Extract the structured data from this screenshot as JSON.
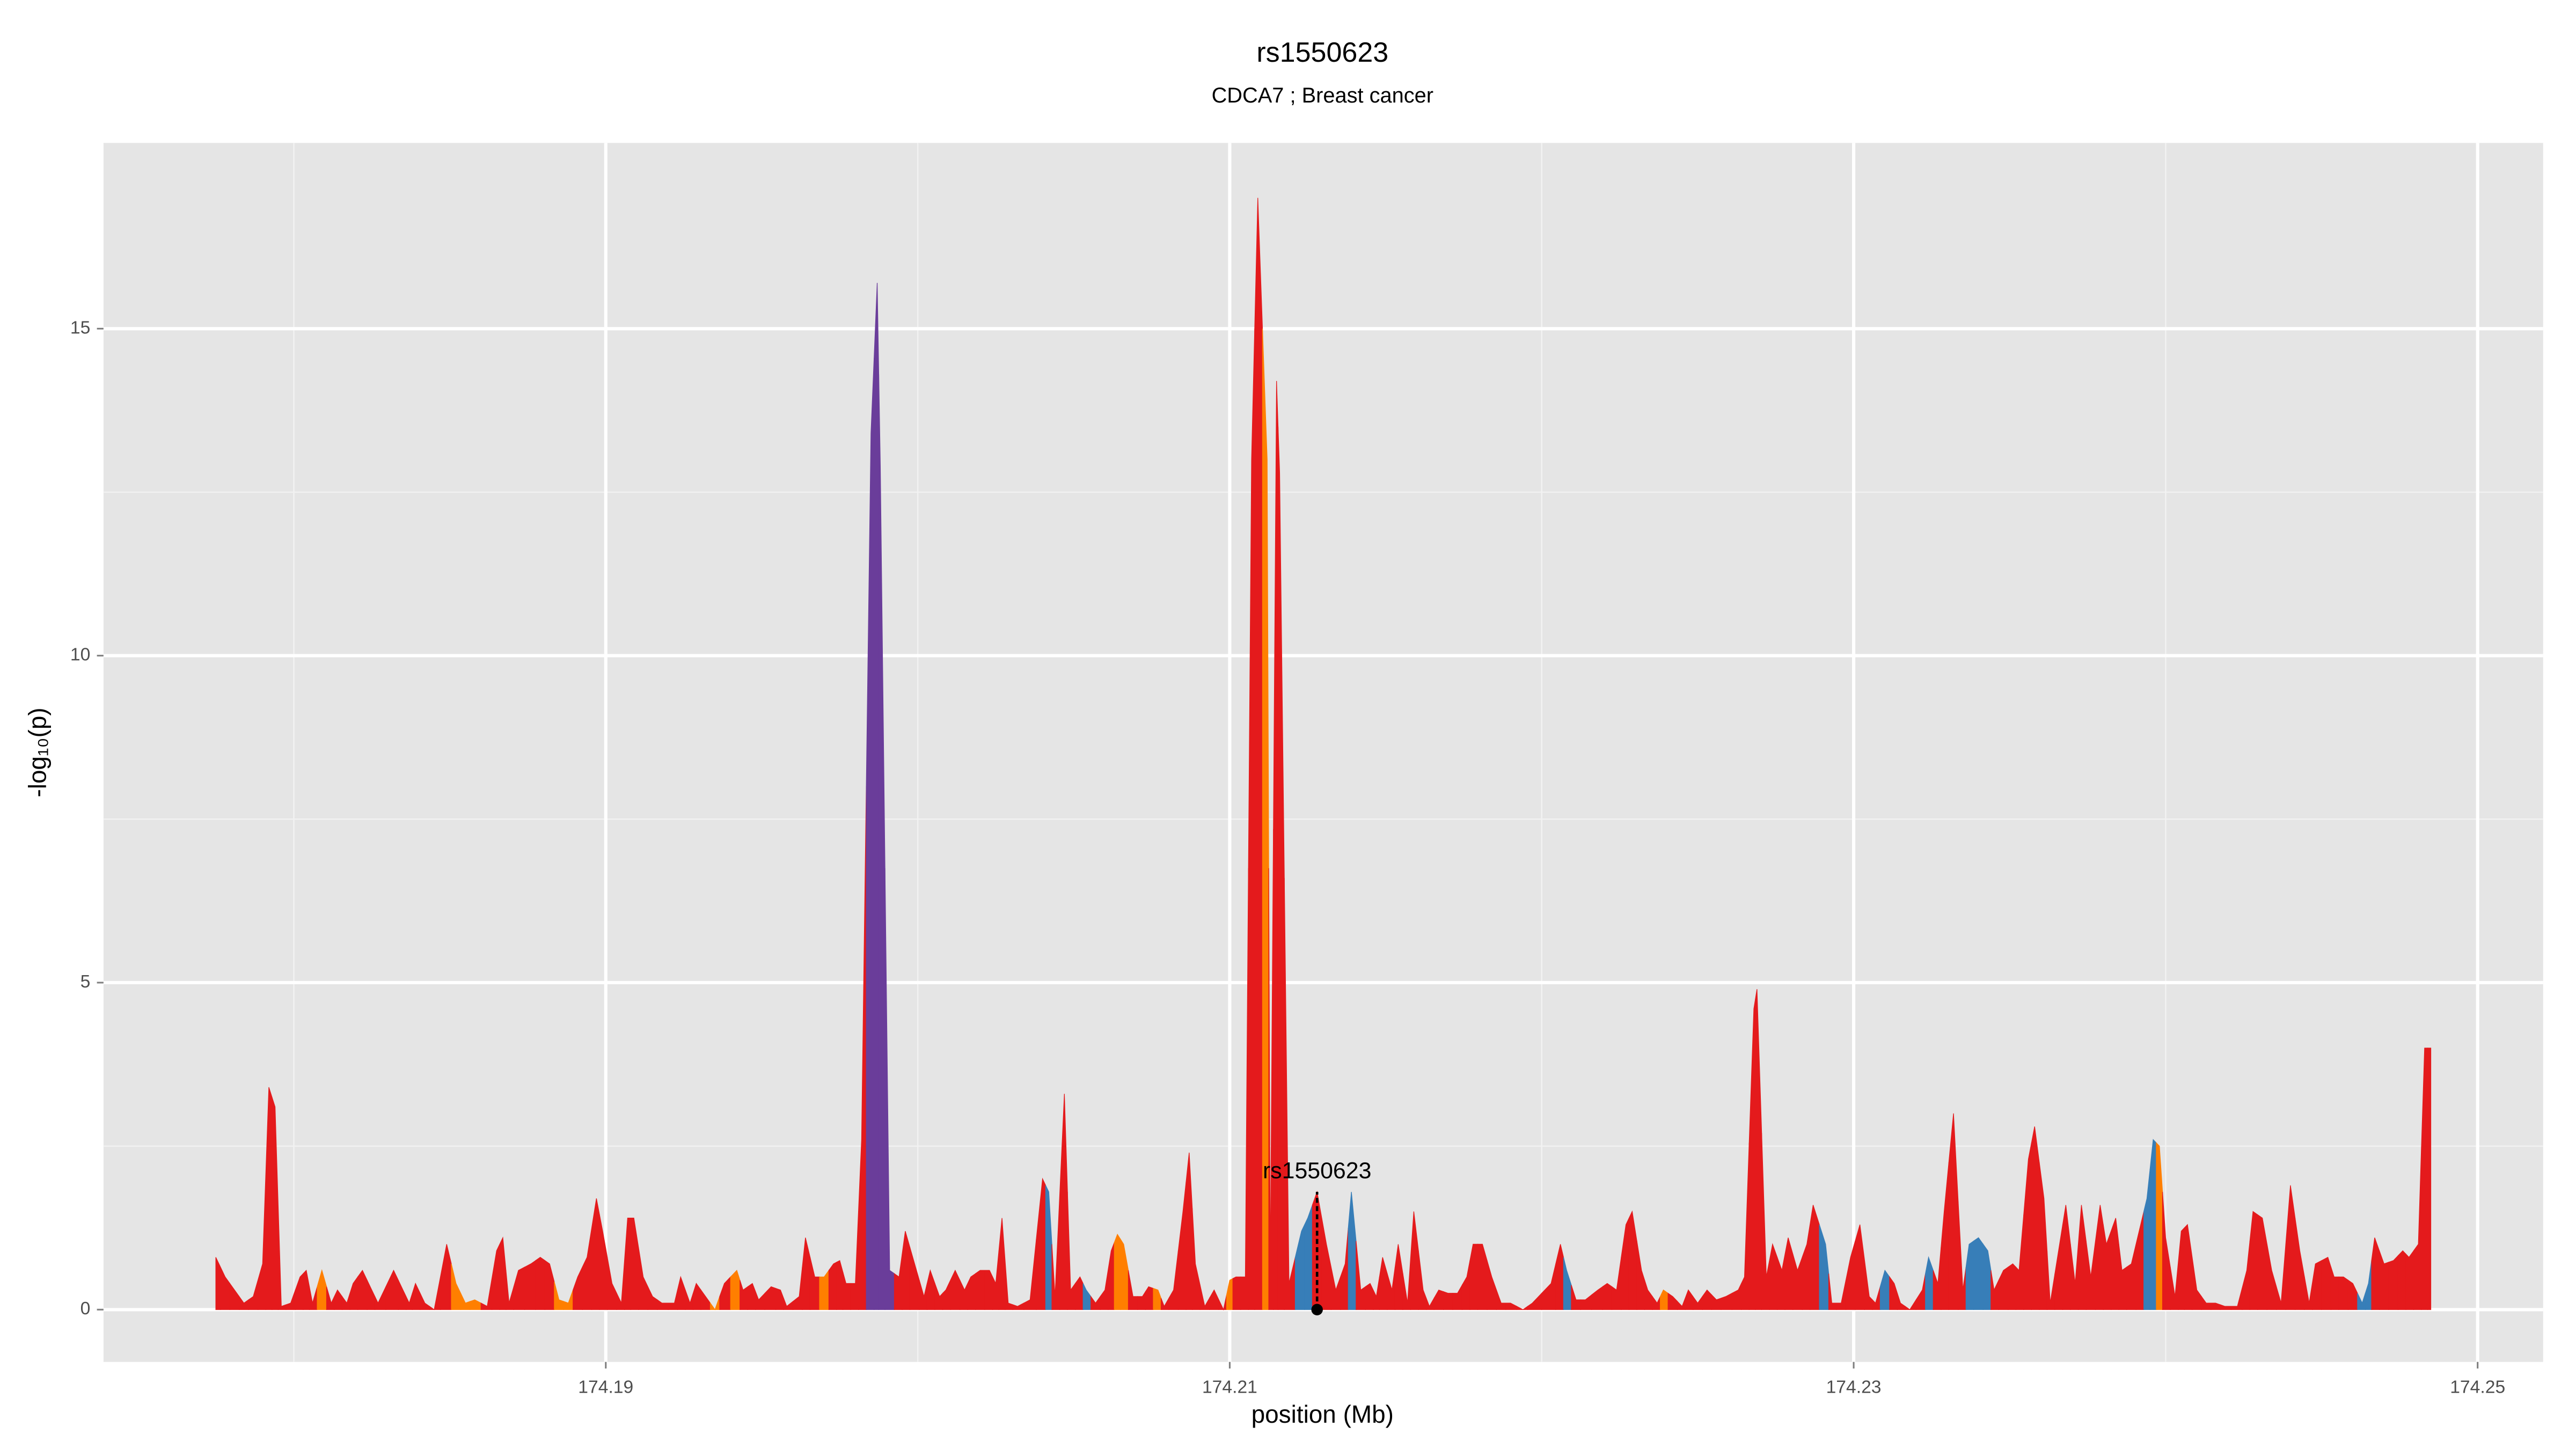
{
  "chart_data": {
    "type": "area",
    "title": "rs1550623",
    "subtitle": "CDCA7 ; Breast cancer",
    "x_label": "position (Mb)",
    "y_label": "-log₁₀(p)",
    "xlim": [
      174.1739,
      174.2521
    ],
    "ylim": [
      -0.8,
      17.84
    ],
    "xticks": [
      174.19,
      174.21,
      174.23,
      174.25
    ],
    "yticks": [
      0,
      5,
      10,
      15
    ],
    "minor_xticks": [
      174.18,
      174.2,
      174.22,
      174.24
    ],
    "minor_yticks": [
      2.5,
      7.5,
      12.5
    ],
    "grid": true,
    "annotation": {
      "label": "rs1550623",
      "x": 174.2128,
      "y": 1.8
    },
    "x": [
      174.1775,
      174.1778,
      174.1781,
      174.1784,
      174.1787,
      174.179,
      174.1792,
      174.1794,
      174.1796,
      174.1799,
      174.1802,
      174.1804,
      174.1806,
      174.1809,
      174.1812,
      174.1814,
      174.1817,
      174.1819,
      174.1822,
      174.1825,
      174.1827,
      174.1832,
      174.1835,
      174.1837,
      174.1839,
      174.1842,
      174.1845,
      174.1849,
      174.1852,
      174.1855,
      174.1858,
      174.1862,
      174.1865,
      174.1867,
      174.1869,
      174.1872,
      174.1876,
      174.1879,
      174.1882,
      174.1885,
      174.1888,
      174.1891,
      174.1894,
      174.1897,
      174.1899,
      174.1902,
      174.1905,
      174.1907,
      174.1909,
      174.1912,
      174.1915,
      174.1918,
      174.1922,
      174.1924,
      174.1927,
      174.1929,
      174.1932,
      174.1935,
      174.1938,
      174.1942,
      174.1944,
      174.1947,
      174.1949,
      174.1953,
      174.1956,
      174.1958,
      174.1962,
      174.1964,
      174.1967,
      174.197,
      174.1973,
      174.1975,
      174.1977,
      174.198,
      174.1982,
      174.1985,
      174.1987,
      174.1988,
      174.1991,
      174.1994,
      174.1996,
      174.1999,
      174.2002,
      174.2004,
      174.2007,
      174.2009,
      174.2012,
      174.2015,
      174.2017,
      174.202,
      174.2023,
      174.2025,
      174.2027,
      174.2029,
      174.2032,
      174.2036,
      174.204,
      174.2042,
      174.2044,
      174.2047,
      174.2049,
      174.2052,
      174.2054,
      174.2057,
      174.206,
      174.2062,
      174.2064,
      174.2066,
      174.2069,
      174.2072,
      174.2074,
      174.2077,
      174.2079,
      174.2082,
      174.2085,
      174.2087,
      174.2089,
      174.2092,
      174.2095,
      174.2098,
      174.21,
      174.2102,
      174.2105,
      174.2107,
      174.2109,
      174.2112,
      174.2113,
      174.2115,
      174.2116,
      174.2119,
      174.2123,
      174.2125,
      174.2128,
      174.2131,
      174.2134,
      174.2137,
      174.2139,
      174.2142,
      174.2145,
      174.2147,
      174.2149,
      174.2152,
      174.2154,
      174.2157,
      174.2159,
      174.2162,
      174.2164,
      174.2167,
      174.217,
      174.2173,
      174.2176,
      174.2178,
      174.2181,
      174.2184,
      174.2187,
      174.219,
      174.2194,
      174.2197,
      174.2203,
      174.2206,
      174.2208,
      174.2211,
      174.2214,
      174.2218,
      174.2221,
      174.2224,
      174.2227,
      174.2229,
      174.2232,
      174.2234,
      174.2237,
      174.2239,
      174.2242,
      174.2245,
      174.2247,
      174.225,
      174.2253,
      174.2256,
      174.2259,
      174.2263,
      174.2265,
      174.2268,
      174.2269,
      174.2272,
      174.2274,
      174.2277,
      174.2279,
      174.2282,
      174.2285,
      174.2287,
      174.2291,
      174.2293,
      174.2296,
      174.2299,
      174.2302,
      174.2305,
      174.2307,
      174.231,
      174.2313,
      174.2315,
      174.2318,
      174.2322,
      174.2324,
      174.2327,
      174.2329,
      174.2332,
      174.2335,
      174.2337,
      174.234,
      174.2343,
      174.2345,
      174.2348,
      174.2351,
      174.2353,
      174.2356,
      174.2358,
      174.2361,
      174.2363,
      174.2366,
      174.2368,
      174.2371,
      174.2373,
      174.2376,
      174.2379,
      174.2381,
      174.2384,
      174.2386,
      174.2389,
      174.2392,
      174.2394,
      174.2396,
      174.2398,
      174.24,
      174.2403,
      174.2405,
      174.2407,
      174.241,
      174.2413,
      174.2416,
      174.2419,
      174.2423,
      174.2426,
      174.2428,
      174.2431,
      174.2434,
      174.2437,
      174.244,
      174.2443,
      174.2446,
      174.2448,
      174.2452,
      174.2454,
      174.2457,
      174.246,
      174.2463,
      174.2465,
      174.2467,
      174.247,
      174.2473,
      174.2476,
      174.2478,
      174.2481,
      174.2483,
      174.2485
    ],
    "values": [
      0.8,
      0.5,
      0.3,
      0.1,
      0.2,
      0.7,
      3.4,
      3.1,
      0.05,
      0.1,
      0.5,
      0.6,
      0.1,
      0.6,
      0.1,
      0.3,
      0.1,
      0.4,
      0.6,
      0.3,
      0.1,
      0.6,
      0.3,
      0.1,
      0.4,
      0.1,
      0,
      1.0,
      0.4,
      0.1,
      0.15,
      0.05,
      0.9,
      1.1,
      0.1,
      0.6,
      0.7,
      0.8,
      0.7,
      0.15,
      0.1,
      0.5,
      0.8,
      1.7,
      1.2,
      0.4,
      0.1,
      1.4,
      1.4,
      0.5,
      0.2,
      0.1,
      0.1,
      0.5,
      0.1,
      0.4,
      0.2,
      0,
      0.4,
      0.6,
      0.3,
      0.4,
      0.15,
      0.35,
      0.3,
      0.05,
      0.2,
      1.1,
      0.5,
      0.5,
      0.7,
      0.75,
      0.4,
      0.4,
      2.6,
      13.4,
      15.7,
      12.9,
      0.6,
      0.5,
      1.2,
      0.7,
      0.2,
      0.6,
      0.2,
      0.3,
      0.6,
      0.3,
      0.5,
      0.6,
      0.6,
      0.4,
      1.4,
      0.1,
      0.05,
      0.15,
      2.0,
      1.8,
      0.2,
      3.3,
      0.3,
      0.5,
      0.3,
      0.1,
      0.3,
      0.9,
      1.15,
      1.0,
      0.2,
      0.2,
      0.35,
      0.3,
      0.05,
      0.3,
      1.5,
      2.4,
      0.7,
      0.05,
      0.3,
      0,
      0.45,
      0.5,
      0.5,
      13.0,
      17.0,
      13.0,
      0.5,
      14.2,
      12.8,
      0.4,
      1.2,
      1.4,
      1.8,
      1.0,
      0.3,
      0.7,
      1.8,
      0.3,
      0.4,
      0.2,
      0.8,
      0.3,
      1.0,
      0.1,
      1.5,
      0.3,
      0.05,
      0.3,
      0.25,
      0.25,
      0.5,
      1.0,
      1.0,
      0.5,
      0.1,
      0.1,
      0,
      0.1,
      0.4,
      1.0,
      0.6,
      0.15,
      0.15,
      0.3,
      0.4,
      0.3,
      1.3,
      1.5,
      0.6,
      0.3,
      0.1,
      0.3,
      0.2,
      0.05,
      0.3,
      0.1,
      0.3,
      0.15,
      0.2,
      0.3,
      0.5,
      4.6,
      4.9,
      0.5,
      1.0,
      0.6,
      1.1,
      0.6,
      1.0,
      1.6,
      1.0,
      0.1,
      0.1,
      0.8,
      1.3,
      0.2,
      0.1,
      0.6,
      0.4,
      0.1,
      0,
      0.3,
      0.8,
      0.4,
      1.5,
      3.0,
      0.3,
      1.0,
      1.1,
      0.9,
      0.3,
      0.6,
      0.7,
      0.6,
      2.3,
      2.8,
      1.7,
      0.1,
      1.0,
      1.6,
      0.4,
      1.6,
      0.5,
      1.6,
      1.0,
      1.4,
      0.6,
      0.7,
      1.3,
      1.7,
      2.6,
      2.5,
      1.1,
      0.2,
      1.2,
      1.3,
      0.3,
      0.1,
      0.1,
      0.05,
      0.05,
      0.6,
      1.5,
      1.4,
      0.6,
      0.1,
      1.9,
      0.9,
      0.1,
      0.7,
      0.8,
      0.5,
      0.5,
      0.4,
      0.1,
      0.4,
      1.1,
      0.7,
      0.75,
      0.9,
      0.8,
      1.0,
      4.0,
      4.0
    ],
    "colors": [
      "#e41a1c",
      "#e41a1c",
      "#e41a1c",
      "#e41a1c",
      "#e41a1c",
      "#e41a1c",
      "#e41a1c",
      "#e41a1c",
      "#e41a1c",
      "#e41a1c",
      "#e41a1c",
      "#e41a1c",
      "#e41a1c",
      "#ff7f00",
      "#e41a1c",
      "#e41a1c",
      "#e41a1c",
      "#e41a1c",
      "#e41a1c",
      "#e41a1c",
      "#e41a1c",
      "#e41a1c",
      "#e41a1c",
      "#e41a1c",
      "#e41a1c",
      "#e41a1c",
      "#e41a1c",
      "#e41a1c",
      "#ff7f00",
      "#ff7f00",
      "#ff7f00",
      "#e41a1c",
      "#e41a1c",
      "#e41a1c",
      "#e41a1c",
      "#e41a1c",
      "#e41a1c",
      "#e41a1c",
      "#e41a1c",
      "#ff7f00",
      "#ff7f00",
      "#e41a1c",
      "#e41a1c",
      "#e41a1c",
      "#e41a1c",
      "#e41a1c",
      "#e41a1c",
      "#e41a1c",
      "#e41a1c",
      "#e41a1c",
      "#e41a1c",
      "#e41a1c",
      "#e41a1c",
      "#e41a1c",
      "#e41a1c",
      "#e41a1c",
      "#e41a1c",
      "#ff7f00",
      "#e41a1c",
      "#ff7f00",
      "#e41a1c",
      "#e41a1c",
      "#e41a1c",
      "#e41a1c",
      "#e41a1c",
      "#e41a1c",
      "#e41a1c",
      "#e41a1c",
      "#e41a1c",
      "#ff7f00",
      "#e41a1c",
      "#e41a1c",
      "#e41a1c",
      "#e41a1c",
      "#e41a1c",
      "#6a3d9a",
      "#6a3d9a",
      "#6a3d9a",
      "#6a3d9a",
      "#e41a1c",
      "#e41a1c",
      "#e41a1c",
      "#e41a1c",
      "#e41a1c",
      "#e41a1c",
      "#e41a1c",
      "#e41a1c",
      "#e41a1c",
      "#e41a1c",
      "#e41a1c",
      "#e41a1c",
      "#e41a1c",
      "#e41a1c",
      "#e41a1c",
      "#e41a1c",
      "#e41a1c",
      "#e41a1c",
      "#377eb8",
      "#e41a1c",
      "#e41a1c",
      "#e41a1c",
      "#e41a1c",
      "#377eb8",
      "#e41a1c",
      "#e41a1c",
      "#e41a1c",
      "#ff7f00",
      "#ff7f00",
      "#e41a1c",
      "#e41a1c",
      "#e41a1c",
      "#ff7f00",
      "#e41a1c",
      "#e41a1c",
      "#e41a1c",
      "#e41a1c",
      "#e41a1c",
      "#e41a1c",
      "#e41a1c",
      "#e41a1c",
      "#ff7f00",
      "#e41a1c",
      "#e41a1c",
      "#e41a1c",
      "#e41a1c",
      "#ff7f00",
      "#e41a1c",
      "#e41a1c",
      "#e41a1c",
      "#e41a1c",
      "#377eb8",
      "#377eb8",
      "#e41a1c",
      "#e41a1c",
      "#e41a1c",
      "#e41a1c",
      "#377eb8",
      "#e41a1c",
      "#e41a1c",
      "#e41a1c",
      "#e41a1c",
      "#e41a1c",
      "#e41a1c",
      "#e41a1c",
      "#e41a1c",
      "#e41a1c",
      "#e41a1c",
      "#e41a1c",
      "#e41a1c",
      "#e41a1c",
      "#e41a1c",
      "#e41a1c",
      "#e41a1c",
      "#e41a1c",
      "#e41a1c",
      "#e41a1c",
      "#e41a1c",
      "#e41a1c",
      "#e41a1c",
      "#e41a1c",
      "#377eb8",
      "#e41a1c",
      "#e41a1c",
      "#e41a1c",
      "#e41a1c",
      "#e41a1c",
      "#e41a1c",
      "#e41a1c",
      "#e41a1c",
      "#e41a1c",
      "#e41a1c",
      "#ff7f00",
      "#e41a1c",
      "#e41a1c",
      "#e41a1c",
      "#e41a1c",
      "#e41a1c",
      "#e41a1c",
      "#e41a1c",
      "#e41a1c",
      "#e41a1c",
      "#e41a1c",
      "#e41a1c",
      "#e41a1c",
      "#e41a1c",
      "#e41a1c",
      "#e41a1c",
      "#e41a1c",
      "#e41a1c",
      "#e41a1c",
      "#377eb8",
      "#e41a1c",
      "#e41a1c",
      "#e41a1c",
      "#e41a1c",
      "#e41a1c",
      "#e41a1c",
      "#377eb8",
      "#e41a1c",
      "#e41a1c",
      "#e41a1c",
      "#e41a1c",
      "#377eb8",
      "#e41a1c",
      "#e41a1c",
      "#e41a1c",
      "#e41a1c",
      "#377eb8",
      "#377eb8",
      "#377eb8",
      "#e41a1c",
      "#e41a1c",
      "#e41a1c",
      "#e41a1c",
      "#e41a1c",
      "#e41a1c",
      "#e41a1c",
      "#e41a1c",
      "#e41a1c",
      "#e41a1c",
      "#e41a1c",
      "#e41a1c",
      "#e41a1c",
      "#e41a1c",
      "#e41a1c",
      "#e41a1c",
      "#e41a1c",
      "#e41a1c",
      "#e41a1c",
      "#377eb8",
      "#377eb8",
      "#ff7f00",
      "#e41a1c",
      "#e41a1c",
      "#e41a1c",
      "#e41a1c",
      "#e41a1c",
      "#e41a1c",
      "#e41a1c",
      "#e41a1c",
      "#e41a1c",
      "#e41a1c",
      "#e41a1c",
      "#e41a1c",
      "#e41a1c",
      "#e41a1c",
      "#e41a1c",
      "#e41a1c",
      "#e41a1c",
      "#e41a1c",
      "#e41a1c",
      "#e41a1c",
      "#e41a1c",
      "#e41a1c",
      "#377eb8",
      "#377eb8",
      "#e41a1c",
      "#e41a1c",
      "#e41a1c",
      "#e41a1c",
      "#e41a1c",
      "#e41a1c",
      "#e41a1c",
      "#e41a1c"
    ]
  }
}
